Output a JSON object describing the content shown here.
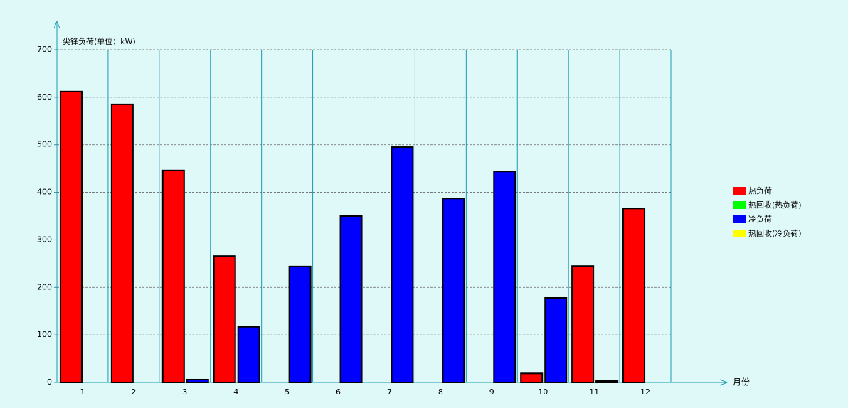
{
  "chart_data": {
    "type": "bar",
    "y_label": "尖锋负荷(单位：kW)",
    "x_label": "月份",
    "categories": [
      "1",
      "2",
      "3",
      "4",
      "5",
      "6",
      "7",
      "8",
      "9",
      "10",
      "11",
      "12"
    ],
    "series": [
      {
        "name": "热负荷",
        "color": "#ff0000",
        "values": [
          612,
          585,
          446,
          266,
          0,
          0,
          0,
          0,
          0,
          19,
          245,
          366
        ]
      },
      {
        "name": "热回收(热负荷)",
        "color": "#00ff00",
        "values": [
          0,
          0,
          0,
          0,
          0,
          0,
          0,
          0,
          0,
          0,
          0,
          0
        ]
      },
      {
        "name": "冷负荷",
        "color": "#0000ff",
        "values": [
          0,
          0,
          6,
          117,
          244,
          350,
          495,
          387,
          444,
          178,
          3,
          0
        ]
      },
      {
        "name": "热回收(冷负荷)",
        "color": "#ffff00",
        "values": [
          0,
          0,
          0,
          0,
          0,
          0,
          0,
          0,
          0,
          0,
          0,
          0
        ]
      }
    ],
    "ylim": [
      0,
      700
    ],
    "yticks": [
      0,
      100,
      200,
      300,
      400,
      500,
      600,
      700
    ],
    "grid": true,
    "legend": "right"
  }
}
